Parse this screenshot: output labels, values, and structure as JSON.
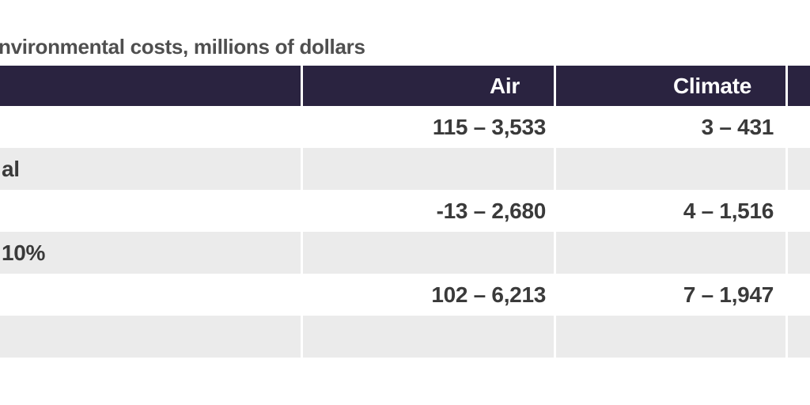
{
  "title": "nvironmental costs, millions of dollars",
  "colors": {
    "header_bg": "#2a2340",
    "header_text": "#ffffff",
    "row_alt_bg": "#ebebeb",
    "body_text": "#3a3a3a",
    "title_text": "#4f4f4f"
  },
  "table": {
    "columns": [
      {
        "label": ""
      },
      {
        "label": "Air"
      },
      {
        "label": "Climate"
      },
      {
        "label": ""
      }
    ],
    "rows": [
      {
        "label": "",
        "air": "115 – 3,533",
        "climate": "3 – 431",
        "extra": ""
      },
      {
        "label": "al",
        "air": "",
        "climate": "",
        "extra": ""
      },
      {
        "label": "",
        "air": "-13 – 2,680",
        "climate": "4 – 1,516",
        "extra": ""
      },
      {
        "label": "10%",
        "air": "",
        "climate": "",
        "extra": ""
      },
      {
        "label": "",
        "air": "102 – 6,213",
        "climate": "7 – 1,947",
        "extra": ""
      },
      {
        "label": "",
        "air": "",
        "climate": "",
        "extra": ""
      }
    ]
  }
}
